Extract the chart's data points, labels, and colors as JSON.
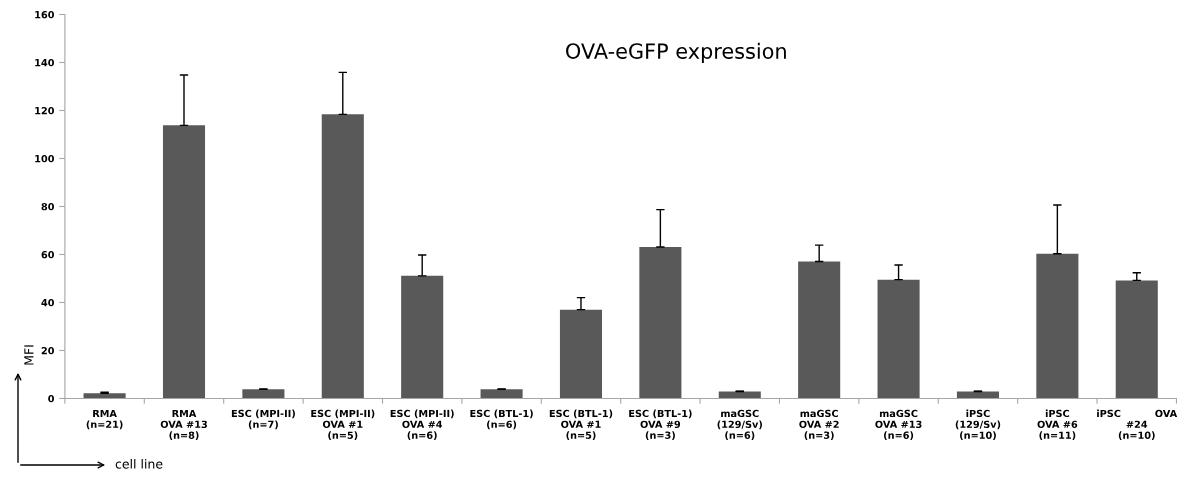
{
  "chart_data": {
    "type": "bar",
    "title": "OVA-eGFP expression",
    "xlabel": "cell line",
    "ylabel": "MFI",
    "categories": [
      "RMA\n(n=21)",
      "RMA\nOVA #13\n(n=8)",
      "ESC (MPI-II)\n(n=7)",
      "ESC (MPI-II)\nOVA #1\n(n=5)",
      "ESC (MPI-II)\nOVA #4\n(n=6)",
      "ESC (BTL-1)\n(n=6)",
      "ESC (BTL-1)\nOVA #1\n(n=5)",
      "ESC (BTL-1)\nOVA #9\n(n=3)",
      "maGSC\n(129/Sv)\n(n=6)",
      "maGSC\nOVA #2\n(n=3)",
      "maGSC\nOVA #13\n(n=6)",
      "iPSC\n(129/Sv)\n(n=10)",
      "iPSC\nOVA #6\n(n=11)",
      "iPSC          OVA\n#24\n(n=10)"
    ],
    "values": [
      2.2,
      113.8,
      3.8,
      118.4,
      51.1,
      3.8,
      37.0,
      63.1,
      2.9,
      57.1,
      49.5,
      2.9,
      60.3,
      49.2
    ],
    "errors": [
      [
        2.2,
        2.6
      ],
      [
        113.8,
        134.8
      ],
      [
        3.8,
        4.0
      ],
      [
        118.4,
        135.9
      ],
      [
        51.1,
        59.8
      ],
      [
        3.8,
        4.0
      ],
      [
        37.0,
        42.0
      ],
      [
        63.1,
        78.7
      ],
      [
        2.9,
        3.0
      ],
      [
        57.1,
        63.9
      ],
      [
        49.5,
        55.6
      ],
      [
        2.9,
        3.0
      ],
      [
        60.3,
        80.6
      ],
      [
        49.2,
        52.4
      ]
    ],
    "color": "#595959",
    "ylim": [
      0,
      160
    ],
    "yticks": [
      0,
      20,
      40,
      60,
      80,
      100,
      120,
      140,
      160
    ],
    "grid": false,
    "legend": false
  }
}
